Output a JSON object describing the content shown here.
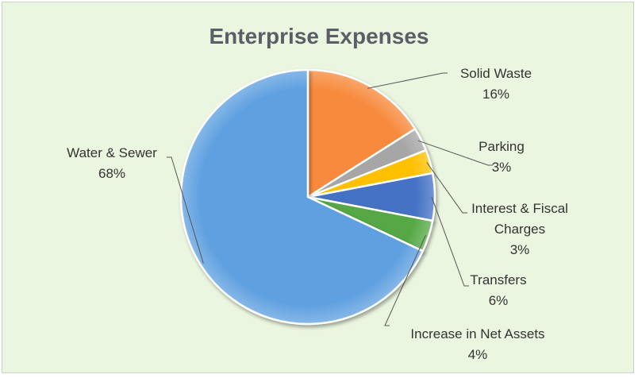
{
  "chart_data": {
    "type": "pie",
    "title": "Enterprise Expenses",
    "slices": [
      {
        "label": "Solid Waste",
        "value": 16,
        "percent_label": "16%",
        "color": "#f78a3c"
      },
      {
        "label": "Parking",
        "value": 3,
        "percent_label": "3%",
        "color": "#a6a6a6"
      },
      {
        "label": "Interest & Fiscal Charges",
        "value": 3,
        "percent_label": "3%",
        "color": "#ffc000"
      },
      {
        "label": "Transfers",
        "value": 6,
        "percent_label": "6%",
        "color": "#4472c4"
      },
      {
        "label": "Increase in Net Assets",
        "value": 4,
        "percent_label": "4%",
        "color": "#55a845"
      },
      {
        "label": "Water & Sewer",
        "value": 68,
        "percent_label": "68%",
        "color": "#5fa0e0"
      }
    ],
    "start_angle_deg": 90,
    "direction": "clockwise",
    "legend": "none",
    "data_labels": "outside-with-leader-lines",
    "background": "#ebf6e0"
  }
}
